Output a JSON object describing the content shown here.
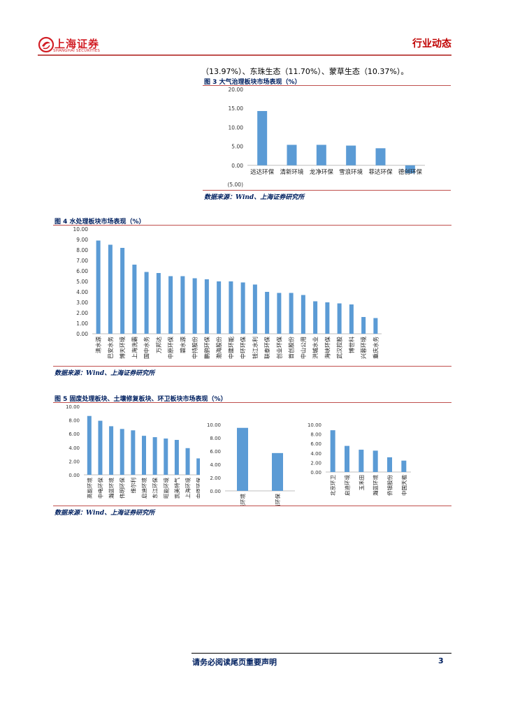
{
  "header": {
    "logo_text": "上海证券",
    "logo_sub": "SHANGHAI SECURITIES",
    "section": "行业动态"
  },
  "intro_text": "（13.97%）、东珠生态（11.70%）、蒙草生态（10.37%）。",
  "figure3": {
    "title": "图 3 大气治理板块市场表现（%）",
    "source": "数据来源：Wind、上海证券研究所"
  },
  "figure4": {
    "title": "图 4 水处理板块市场表现（%）",
    "source": "数据来源：Wind、上海证券研究所"
  },
  "figure5": {
    "title": "图 5 固废处理板块、土壤修复板块、环卫板块市场表现（%）",
    "source": "数据来源：Wind、上海证券研究所"
  },
  "footer": {
    "notice": "请务必阅读尾页重要声明",
    "page": "3"
  },
  "colors": {
    "bar": "#5b9bd5",
    "rule_red": "#c0504d",
    "title_blue": "#002060",
    "brand_red": "#d21f26"
  },
  "chart_data": [
    {
      "id": "fig3",
      "type": "bar",
      "categories": [
        "远达环保",
        "清新环境",
        "龙净环保",
        "雪浪环境",
        "菲达环保",
        "德创环保"
      ],
      "values": [
        14.3,
        5.4,
        5.4,
        5.2,
        4.5,
        -2.1
      ],
      "tick_labels": [
        "20.00",
        "15.00",
        "10.00",
        "5.00",
        "0.00",
        "(5.00)"
      ],
      "ylim": [
        -5,
        20
      ],
      "grid": false
    },
    {
      "id": "fig4",
      "type": "bar",
      "categories": [
        "清水源",
        "巴安水务",
        "博天环境",
        "上海洗霸",
        "国中水务",
        "万邦达",
        "中原环保",
        "碧水源",
        "中持股份",
        "鹏鹞环保",
        "渤海股份",
        "中建环能",
        "中环环保",
        "钱江水利",
        "联泰环保",
        "创业环保",
        "首创股份",
        "中山公用",
        "洪城水业",
        "海峡环保",
        "武汉控股",
        "博世科",
        "兴蓉环境",
        "重庆水务"
      ],
      "values": [
        8.9,
        8.5,
        8.2,
        6.6,
        5.9,
        5.8,
        5.5,
        5.5,
        5.3,
        5.2,
        5.0,
        5.0,
        4.9,
        4.7,
        4.0,
        3.9,
        3.9,
        3.7,
        3.1,
        3.0,
        2.9,
        2.8,
        1.6,
        1.5
      ],
      "tick_labels": [
        "10.00",
        "9.00",
        "8.00",
        "7.00",
        "6.00",
        "5.00",
        "4.00",
        "3.00",
        "2.00",
        "1.00",
        "0.00"
      ],
      "ylim": [
        0,
        10
      ],
      "grid": false
    },
    {
      "id": "fig5a",
      "type": "bar",
      "categories": [
        "高能环境",
        "中电环保",
        "瀚蓝环境",
        "伟明环保",
        "维尔利",
        "启迪环境",
        "东江环保",
        "旺能环境",
        "凯美特气",
        "上海环境",
        "中原环保"
      ],
      "values": [
        8.6,
        7.9,
        7.1,
        6.7,
        6.5,
        5.7,
        5.5,
        5.3,
        5.1,
        3.9,
        2.4
      ],
      "tick_labels": [
        "10.00",
        "8.00",
        "6.00",
        "4.00",
        "2.00",
        "0.00"
      ],
      "ylim": [
        0,
        10
      ],
      "grid": false
    },
    {
      "id": "fig5b",
      "type": "bar",
      "categories": [
        "高能环境",
        "永清环保"
      ],
      "values": [
        9.5,
        5.7
      ],
      "tick_labels": [
        "10.00",
        "8.00",
        "6.00",
        "4.00",
        "2.00",
        "0.00"
      ],
      "ylim": [
        0,
        10
      ],
      "grid": false
    },
    {
      "id": "fig5c",
      "type": "bar",
      "categories": [
        "北京环卫",
        "启迪环境",
        "玉禾田",
        "瀚蓝环境",
        "侨银股份",
        "中国天楹"
      ],
      "values": [
        8.8,
        5.5,
        4.7,
        4.5,
        3.1,
        2.4
      ],
      "tick_labels": [
        "10.00",
        "8.00",
        "6.00",
        "4.00",
        "2.00",
        "0.00"
      ],
      "ylim": [
        0,
        10
      ],
      "grid": false
    }
  ]
}
